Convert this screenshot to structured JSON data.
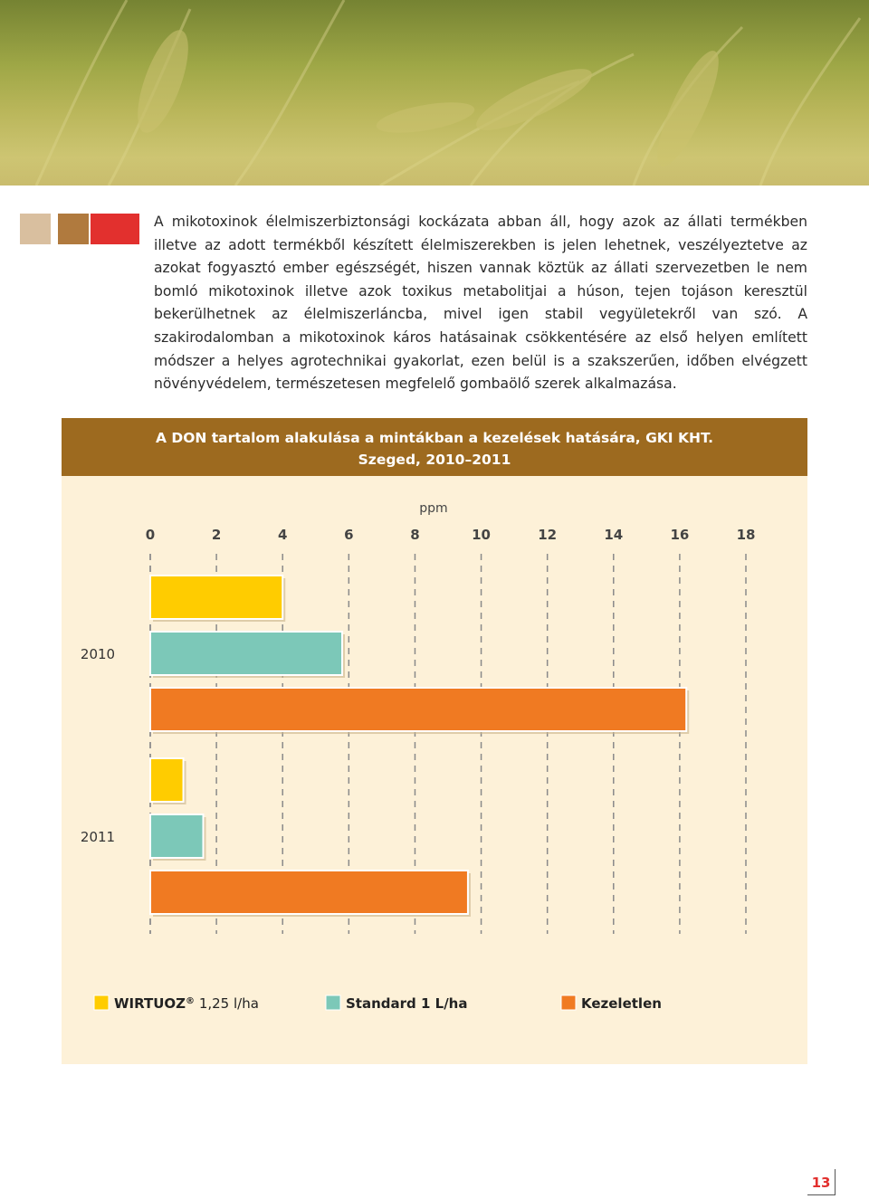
{
  "paragraph": "A mikotoxinok élelmiszerbiztonsági kockázata abban áll, hogy azok az állati termékben illetve az adott termékből készített élelmiszerekben is jelen lehetnek, veszélyeztetve az azokat fogyasztó ember egészségét, hiszen vannak köztük az állati szervezetben le nem bomló mikotoxinok illetve azok toxikus metabolitjai a húson, tejen tojáson keresztül bekerülhetnek az élelmiszerláncba, mivel igen stabil vegyületekről van szó. A szakirodalomban a mikotoxinok káros hatásainak csökkentésére az első helyen említett módszer a helyes agrotechnikai gyakorlat, ezen belül is a szakszerűen, időben elvégzett növényvédelem, természetesen megfelelő gombaölő szerek alkalmazása.",
  "chart_data": {
    "type": "bar",
    "orientation": "horizontal",
    "title": "A DON tartalom alakulása a mintákban a kezelések hatására, GKI KHT.",
    "subtitle": "Szeged, 2010–2011",
    "xlabel": "ppm",
    "xlim": [
      0,
      18
    ],
    "xticks": [
      "0",
      "2",
      "4",
      "6",
      "8",
      "10",
      "12",
      "14",
      "16",
      "18"
    ],
    "categories": [
      "2010",
      "2011"
    ],
    "grid": true,
    "legend_position": "bottom",
    "series": [
      {
        "name": "WIRTUOZ",
        "name_sup": "®",
        "name_suffix": " 1,25 l/ha",
        "color": "#ffcc00",
        "values": [
          4.0,
          1.0
        ]
      },
      {
        "name": "Standard 1 L/ha",
        "color": "#7cc8b8",
        "values": [
          5.8,
          1.6
        ]
      },
      {
        "name": "Kezeletlen",
        "color": "#f07a22",
        "values": [
          16.2,
          9.6
        ]
      }
    ]
  },
  "page_number": "13"
}
